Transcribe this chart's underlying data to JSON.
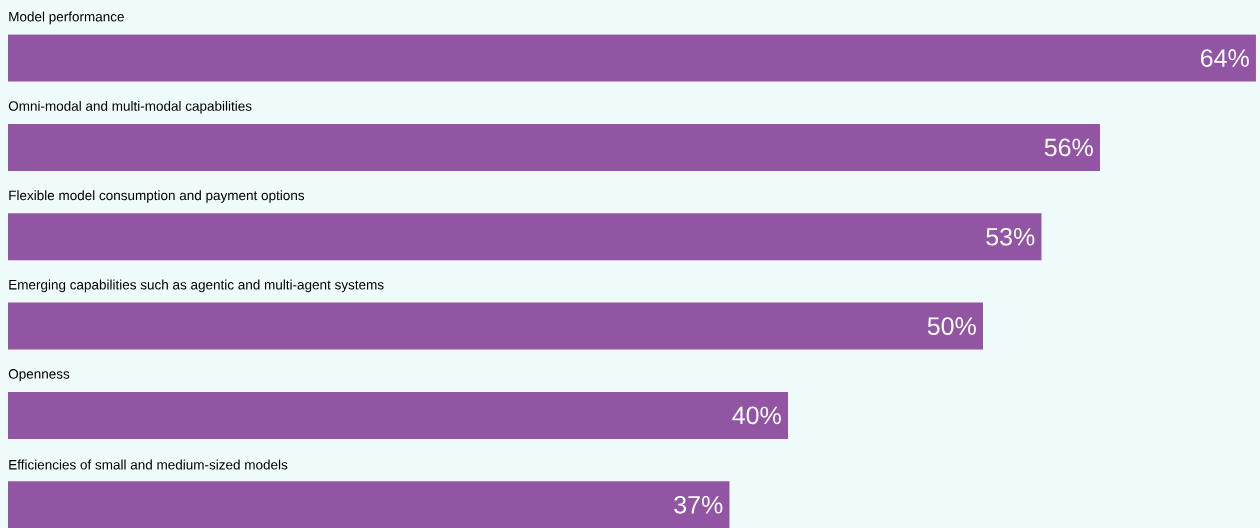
{
  "chart_data": {
    "type": "bar",
    "orientation": "horizontal",
    "categories": [
      "Model performance",
      "Omni-modal and multi-modal capabilities",
      "Flexible model consumption and payment options",
      "Emerging capabilities such as agentic and multi-agent systems",
      "Openness",
      "Efficiencies of small and medium-sized models"
    ],
    "values": [
      64,
      56,
      53,
      50,
      40,
      37
    ],
    "value_labels": [
      "64%",
      "56%",
      "53%",
      "50%",
      "40%",
      "37%"
    ],
    "color": "#9155a4"
  }
}
